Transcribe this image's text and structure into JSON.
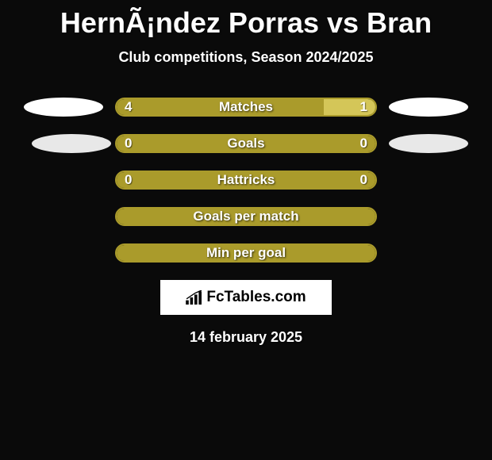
{
  "title": "HernÃ¡ndez Porras vs Bran",
  "subtitle": "Club competitions, Season 2024/2025",
  "date": "14 february 2025",
  "logo_text": "FcTables.com",
  "colors": {
    "background": "#0a0a0a",
    "text": "#ffffff",
    "bar_fill": "#aa9b2b",
    "bar_border": "#aa9b2b",
    "bar_accent": "#d4c658",
    "ellipse_white": "#ffffff",
    "ellipse_gray": "#e8e8e8",
    "logo_bg": "#ffffff",
    "logo_text": "#000000"
  },
  "rows": [
    {
      "label": "Matches",
      "left_value": "4",
      "right_value": "1",
      "left_pct": 80,
      "right_pct": 20,
      "left_color": "#aa9b2b",
      "right_color": "#d4c658",
      "show_ellipses": true,
      "left_ellipse_color": "#ffffff",
      "right_ellipse_color": "#ffffff",
      "ellipse_offset": false
    },
    {
      "label": "Goals",
      "left_value": "0",
      "right_value": "0",
      "left_pct": 50,
      "right_pct": 50,
      "left_color": "#aa9b2b",
      "right_color": "#aa9b2b",
      "show_ellipses": true,
      "left_ellipse_color": "#e8e8e8",
      "right_ellipse_color": "#e8e8e8",
      "ellipse_offset": true
    },
    {
      "label": "Hattricks",
      "left_value": "0",
      "right_value": "0",
      "left_pct": 50,
      "right_pct": 50,
      "left_color": "#aa9b2b",
      "right_color": "#aa9b2b",
      "show_ellipses": false
    },
    {
      "label": "Goals per match",
      "left_value": "",
      "right_value": "",
      "left_pct": 100,
      "right_pct": 0,
      "left_color": "#aa9b2b",
      "right_color": "#aa9b2b",
      "show_ellipses": false
    },
    {
      "label": "Min per goal",
      "left_value": "",
      "right_value": "",
      "left_pct": 100,
      "right_pct": 0,
      "left_color": "#aa9b2b",
      "right_color": "#aa9b2b",
      "show_ellipses": false
    }
  ]
}
